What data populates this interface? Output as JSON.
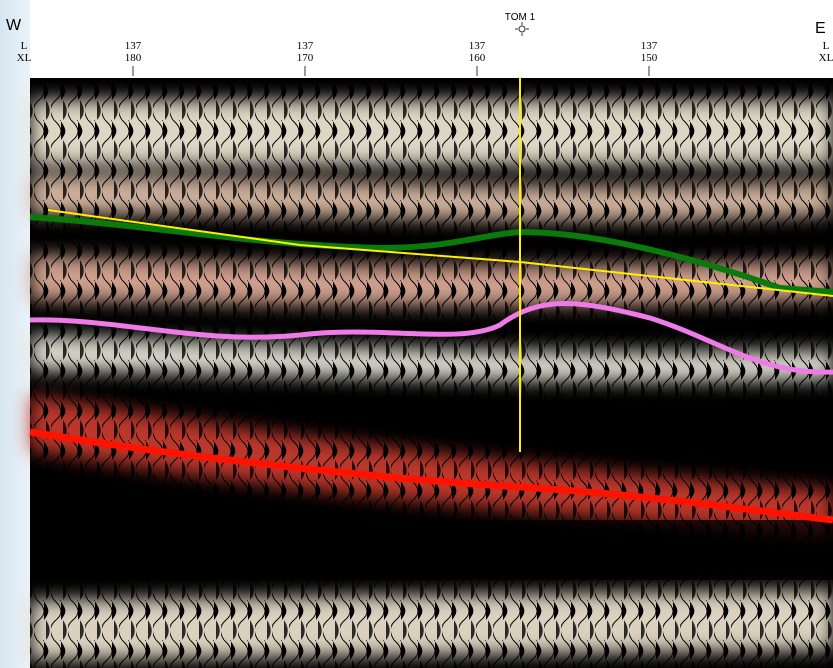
{
  "header": {
    "west": "W",
    "east": "E",
    "well": "TOM 1",
    "left_axis": {
      "line": "L",
      "xline": "XL"
    },
    "right_axis": {
      "line": "L",
      "xline": "XL"
    },
    "ticks": [
      {
        "line": "137",
        "xline": "180"
      },
      {
        "line": "137",
        "xline": "170"
      },
      {
        "line": "137",
        "xline": "160"
      },
      {
        "line": "137",
        "xline": "150"
      }
    ]
  }
}
